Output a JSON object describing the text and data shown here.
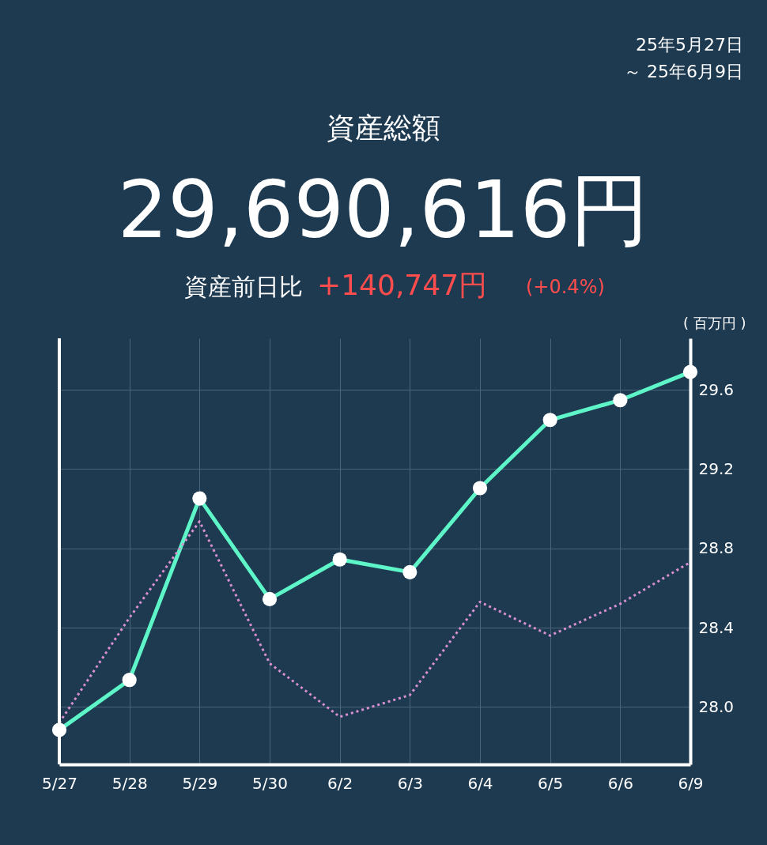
{
  "chart_data": {
    "type": "line",
    "title": "資産総額",
    "subtitle": "29,690,616円",
    "annotations": [
      "25年5月27日",
      "～ 25年6月9日",
      "資産前日比",
      "+140,747円",
      "(+0.4%)"
    ],
    "ylabel": "( 百万円 )",
    "categories": [
      "5/27",
      "5/28",
      "5/29",
      "5/30",
      "6/2",
      "6/3",
      "6/4",
      "6/5",
      "6/6",
      "6/9"
    ],
    "series": [
      {
        "color": "#5ef5c8",
        "line_style": "solid",
        "marker": "circle",
        "values": [
          27.884,
          28.136,
          29.052,
          28.544,
          28.744,
          28.68,
          29.104,
          29.448,
          29.548,
          29.69
        ]
      },
      {
        "color": "#d98fd0",
        "line_style": "dotted",
        "marker": "none",
        "values": [
          27.92,
          28.45,
          28.936,
          28.22,
          27.95,
          28.06,
          28.53,
          28.36,
          28.52,
          28.73
        ]
      }
    ],
    "ylim": [
      27.71,
      29.86
    ],
    "yticks": [
      {
        "value": 28.0,
        "label": "28.0"
      },
      {
        "value": 28.4,
        "label": "28.4"
      },
      {
        "value": 28.8,
        "label": "28.8"
      },
      {
        "value": 29.2,
        "label": "29.2"
      },
      {
        "value": 29.6,
        "label": "29.6"
      }
    ],
    "grid": true
  }
}
